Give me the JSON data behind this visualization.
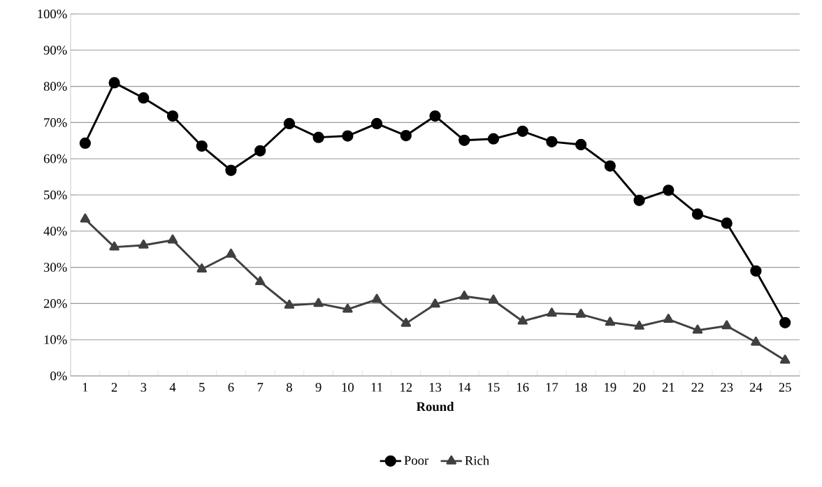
{
  "chart_data": {
    "type": "line",
    "xlabel": "Round",
    "categories": [
      "1",
      "2",
      "3",
      "4",
      "5",
      "6",
      "7",
      "8",
      "9",
      "10",
      "11",
      "12",
      "13",
      "14",
      "15",
      "16",
      "17",
      "18",
      "19",
      "20",
      "21",
      "22",
      "23",
      "24",
      "25"
    ],
    "series": [
      {
        "name": "Poor",
        "color": "#000000",
        "marker": "circle",
        "values": [
          64.3,
          81,
          76.8,
          71.8,
          63.5,
          56.8,
          62.2,
          69.7,
          65.9,
          66.3,
          69.7,
          66.4,
          71.8,
          65.1,
          65.5,
          67.6,
          64.7,
          63.9,
          58,
          48.5,
          51.3,
          44.7,
          42.2,
          29,
          14.7
        ]
      },
      {
        "name": "Rich",
        "color": "#404040",
        "marker": "triangle",
        "values": [
          43.3,
          35.6,
          36.1,
          37.5,
          29.5,
          33.6,
          26,
          19.5,
          20,
          18.4,
          21.1,
          14.5,
          19.8,
          22,
          20.9,
          15.1,
          17.3,
          17,
          14.8,
          13.7,
          15.6,
          12.6,
          13.8,
          9.3,
          4.3
        ]
      }
    ],
    "ylim": [
      0,
      100
    ],
    "yticks": [
      {
        "value": 0,
        "label": "0%"
      },
      {
        "value": 10,
        "label": "10%"
      },
      {
        "value": 20,
        "label": "20%"
      },
      {
        "value": 30,
        "label": "30%"
      },
      {
        "value": 40,
        "label": "40%"
      },
      {
        "value": 50,
        "label": "50%"
      },
      {
        "value": 60,
        "label": "60%"
      },
      {
        "value": 70,
        "label": "70%"
      },
      {
        "value": 80,
        "label": "80%"
      },
      {
        "value": 90,
        "label": "90%"
      },
      {
        "value": 100,
        "label": "100%"
      }
    ],
    "grid": "y",
    "legend": "bottom",
    "line_style": "solid"
  }
}
